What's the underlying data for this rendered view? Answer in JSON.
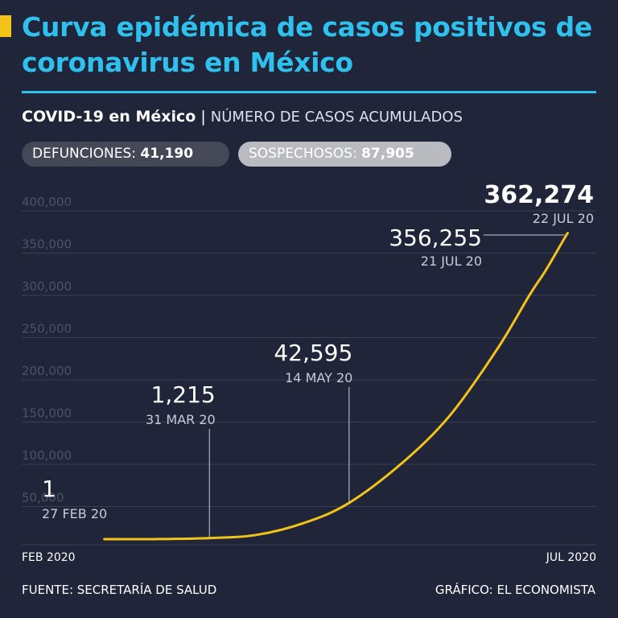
{
  "header": {
    "title": "Curva epidémica de casos positivos de coronavirus en México",
    "subtitle_bold": "COVID-19 en México",
    "subtitle_sep": "|",
    "subtitle_light": "NÚMERO DE CASOS ACUMULADOS"
  },
  "stats": {
    "defunciones_label": "DEFUNCIONES:",
    "defunciones_value": "41,190",
    "sospechosos_label": "SOSPECHOSOS:",
    "sospechosos_value": "87,905"
  },
  "footer": {
    "source": "FUENTE: SECRETARÍA DE SALUD",
    "credit": "GRÁFICO: EL ECONOMISTA"
  },
  "colors": {
    "background": "#21253a",
    "title": "#2ec1ee",
    "line": "#f2c318",
    "grid": "#3a3f55"
  },
  "chart_data": {
    "type": "line",
    "title": "",
    "xlabel": "",
    "ylabel": "",
    "ylim": [
      0,
      400000
    ],
    "yticks": [
      50000,
      100000,
      150000,
      200000,
      250000,
      300000,
      350000,
      400000
    ],
    "ytick_labels": [
      "50,000",
      "100,000",
      "150,000",
      "200,000",
      "250,000",
      "300,000",
      "350,000",
      "400,000"
    ],
    "x_start_label": "FEB 2020",
    "x_end_label": "JUL 2020",
    "grid": true,
    "series": [
      {
        "x": [
          "2020-02-27",
          "2020-03-15",
          "2020-03-31",
          "2020-04-15",
          "2020-04-30",
          "2020-05-14",
          "2020-05-31",
          "2020-06-15",
          "2020-06-30",
          "2020-07-10",
          "2020-07-15",
          "2020-07-21",
          "2020-07-22"
        ],
        "y": [
          1,
          53,
          1215,
          5014,
          19224,
          42595,
          90664,
          146837,
          226089,
          289174,
          317635,
          356255,
          362274
        ]
      }
    ],
    "annotations": [
      {
        "value": "1",
        "date": "27 FEB 20",
        "x": "2020-02-27",
        "y": 1
      },
      {
        "value": "1,215",
        "date": "31 MAR 20",
        "x": "2020-03-31",
        "y": 1215
      },
      {
        "value": "42,595",
        "date": "14 MAY 20",
        "x": "2020-05-14",
        "y": 42595
      },
      {
        "value": "356,255",
        "date": "21 JUL 20",
        "x": "2020-07-21",
        "y": 356255
      },
      {
        "value": "362,274",
        "date": "22 JUL 20",
        "x": "2020-07-22",
        "y": 362274
      }
    ]
  }
}
